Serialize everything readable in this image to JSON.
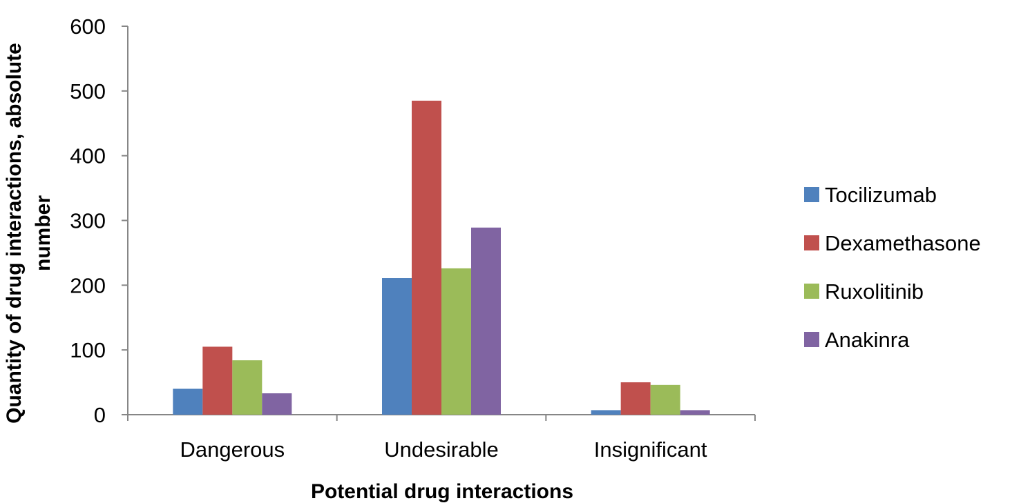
{
  "chart_data": {
    "type": "bar",
    "categories": [
      "Dangerous",
      "Undesirable",
      "Insignificant"
    ],
    "series": [
      {
        "name": "Tocilizumab",
        "color": "#4f81bd",
        "values": [
          40,
          211,
          7
        ]
      },
      {
        "name": "Dexamethasone",
        "color": "#c0504d",
        "values": [
          105,
          485,
          50
        ]
      },
      {
        "name": "Ruxolitinib",
        "color": "#9bbb59",
        "values": [
          84,
          226,
          46
        ]
      },
      {
        "name": "Anakinra",
        "color": "#8064a2",
        "values": [
          33,
          289,
          7
        ]
      }
    ],
    "xlabel": "Potential drug interactions",
    "ylabel_lines": [
      "Quantity of drug interactions, absolute",
      "number"
    ],
    "ylim": [
      0,
      600
    ],
    "yticks": [
      0,
      100,
      200,
      300,
      400,
      500,
      600
    ],
    "grid": false,
    "legend_position": "right"
  }
}
